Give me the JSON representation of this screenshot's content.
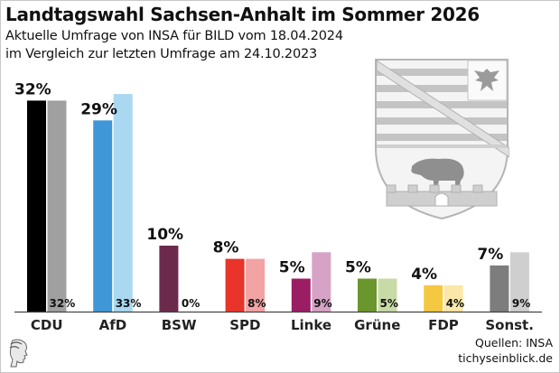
{
  "header": {
    "title": "Landtagswahl Sachsen-Anhalt im Sommer 2026",
    "subtitle_line1": "Aktuelle Umfrage von INSA für BILD vom 18.04.2024",
    "subtitle_line2": "im Vergleich zur letzten Umfrage am 24.10.2023"
  },
  "footer": {
    "source": "Quellen: INSA",
    "site": "tichyseinblick.de",
    "logo_icon": "classical-head-logo-icon"
  },
  "decoration": {
    "crest_icon": "sachsen-anhalt-coat-of-arms-icon"
  },
  "chart_data": {
    "type": "bar",
    "title": "Landtagswahl Sachsen-Anhalt im Sommer 2026",
    "xlabel": "",
    "ylabel": "",
    "ylim": [
      0,
      40
    ],
    "grid": false,
    "categories": [
      "CDU",
      "AfD",
      "BSW",
      "SPD",
      "Linke",
      "Grüne",
      "FDP",
      "Sonst."
    ],
    "series": [
      {
        "name": "Umfrage 18.04.2024",
        "values": [
          32,
          29,
          10,
          8,
          5,
          5,
          4,
          7
        ],
        "labels": [
          "32%",
          "29%",
          "10%",
          "8%",
          "5%",
          "5%",
          "4%",
          "7%"
        ],
        "colors": [
          "#000000",
          "#3f97d8",
          "#6b2a4c",
          "#e8342a",
          "#9b1d63",
          "#6b962d",
          "#f5c842",
          "#7d7d7d"
        ]
      },
      {
        "name": "Umfrage 24.10.2023",
        "values": [
          32,
          33,
          0,
          8,
          9,
          5,
          4,
          9
        ],
        "labels": [
          "32%",
          "33%",
          "0%",
          "8%",
          "9%",
          "5%",
          "4%",
          "9%"
        ],
        "colors": [
          "#a0a0a0",
          "#a9d8f0",
          "#d9a9c0",
          "#f2a3a3",
          "#d6a3c6",
          "#c8dba6",
          "#fbe7a8",
          "#cfcfcf"
        ]
      }
    ]
  }
}
